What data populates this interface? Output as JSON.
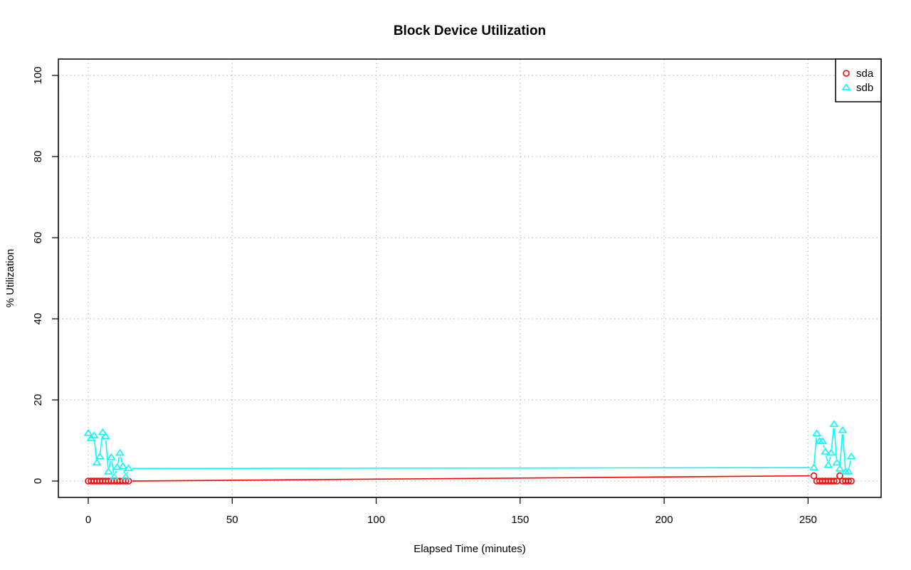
{
  "chart_data": {
    "type": "line",
    "title": "Block Device Utilization",
    "xlabel": "Elapsed Time (minutes)",
    "ylabel": "% Utilization",
    "xlim": [
      -10,
      275
    ],
    "ylim": [
      -4,
      104
    ],
    "xticks": [
      0,
      50,
      100,
      150,
      200,
      250
    ],
    "yticks": [
      0,
      20,
      40,
      60,
      80,
      100
    ],
    "grid": true,
    "legend_position": "top-right",
    "series": [
      {
        "name": "sda",
        "color": "#ff0000",
        "marker": "circle",
        "x": [
          0,
          1,
          2,
          3,
          4,
          5,
          6,
          7,
          8,
          9,
          10,
          11,
          12,
          13,
          14,
          252,
          253,
          254,
          255,
          256,
          257,
          258,
          259,
          260,
          261,
          262,
          263,
          264,
          265
        ],
        "y": [
          0,
          0,
          0,
          0,
          0,
          0,
          0,
          0,
          0,
          0,
          0,
          0,
          0,
          0,
          0,
          1.3,
          0,
          0,
          0,
          0,
          0,
          0,
          0,
          0,
          1.3,
          0,
          0,
          0,
          0
        ]
      },
      {
        "name": "sdb",
        "color": "#00ffff",
        "marker": "triangle",
        "x": [
          0,
          1,
          2,
          3,
          4,
          5,
          6,
          7,
          8,
          9,
          10,
          11,
          12,
          13,
          14,
          252,
          253,
          254,
          255,
          256,
          257,
          258,
          259,
          260,
          261,
          262,
          263,
          264,
          265
        ],
        "y": [
          11.8,
          10.5,
          11.2,
          4.5,
          6.0,
          12.0,
          11.0,
          2.3,
          5.8,
          1.0,
          3.4,
          6.9,
          3.6,
          1.0,
          3.1,
          3.3,
          11.7,
          9.8,
          9.8,
          7.2,
          3.9,
          6.9,
          14.0,
          4.5,
          3.0,
          12.5,
          2.3,
          2.3,
          6.0
        ]
      }
    ]
  }
}
